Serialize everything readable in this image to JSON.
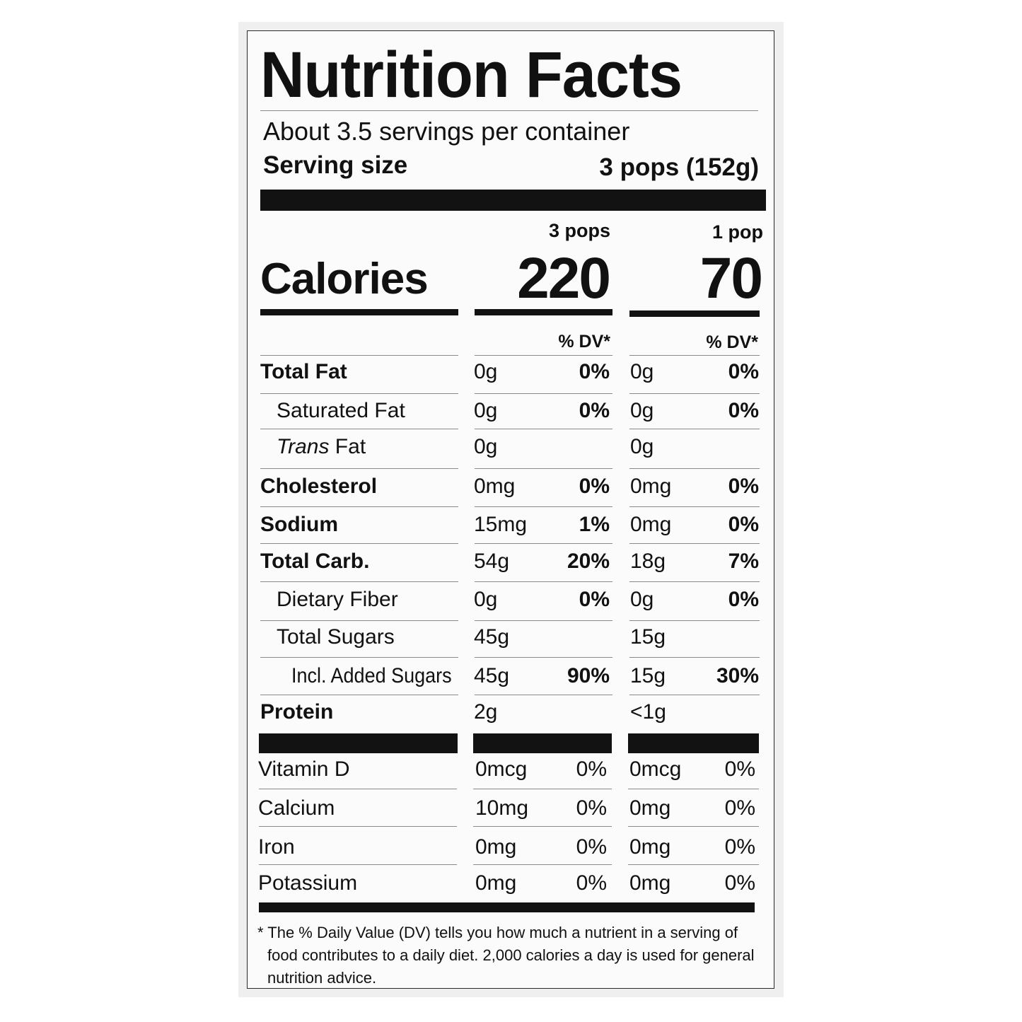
{
  "label": {
    "title": "Nutrition Facts",
    "servings_per_container": "About 3.5 servings per container",
    "serving_size_label": "Serving size",
    "serving_size_value": "3 pops (152g)",
    "columns": [
      {
        "heading": "3 pops",
        "calories": "220",
        "dv_heading": "% DV*"
      },
      {
        "heading": "1 pop",
        "calories": "70",
        "dv_heading": "% DV*"
      }
    ],
    "calories_label": "Calories",
    "nutrients": [
      {
        "name": "Total Fat",
        "bold": true,
        "indent": 0,
        "v1": "0g",
        "p1": "0%",
        "v2": "0g",
        "p2": "0%"
      },
      {
        "name": "Saturated Fat",
        "bold": false,
        "indent": 1,
        "v1": "0g",
        "p1": "0%",
        "v2": "0g",
        "p2": "0%"
      },
      {
        "name": "Trans Fat",
        "bold": false,
        "indent": 1,
        "italic_prefix": "Trans",
        "v1": "0g",
        "p1": "",
        "v2": "0g",
        "p2": ""
      },
      {
        "name": "Cholesterol",
        "bold": true,
        "indent": 0,
        "v1": "0mg",
        "p1": "0%",
        "v2": "0mg",
        "p2": "0%"
      },
      {
        "name": "Sodium",
        "bold": true,
        "indent": 0,
        "v1": "15mg",
        "p1": "1%",
        "v2": "0mg",
        "p2": "0%"
      },
      {
        "name": "Total Carb.",
        "bold": true,
        "indent": 0,
        "v1": "54g",
        "p1": "20%",
        "v2": "18g",
        "p2": "7%"
      },
      {
        "name": "Dietary Fiber",
        "bold": false,
        "indent": 1,
        "v1": "0g",
        "p1": "0%",
        "v2": "0g",
        "p2": "0%"
      },
      {
        "name": "Total Sugars",
        "bold": false,
        "indent": 1,
        "v1": "45g",
        "p1": "",
        "v2": "15g",
        "p2": ""
      },
      {
        "name": "Incl. Added Sugars",
        "bold": false,
        "indent": 2,
        "v1": "45g",
        "p1": "90%",
        "v2": "15g",
        "p2": "30%"
      },
      {
        "name": "Protein",
        "bold": true,
        "indent": 0,
        "v1": "2g",
        "p1": "",
        "v2": "<1g",
        "p2": ""
      }
    ],
    "vitamins": [
      {
        "name": "Vitamin D",
        "v1": "0mcg",
        "p1": "0%",
        "v2": "0mcg",
        "p2": "0%"
      },
      {
        "name": "Calcium",
        "v1": "10mg",
        "p1": "0%",
        "v2": "0mg",
        "p2": "0%"
      },
      {
        "name": "Iron",
        "v1": "0mg",
        "p1": "0%",
        "v2": "0mg",
        "p2": "0%"
      },
      {
        "name": "Potassium",
        "v1": "0mg",
        "p1": "0%",
        "v2": "0mg",
        "p2": "0%"
      }
    ],
    "footnote_line1": "* The % Daily Value (DV) tells you how much a nutrient in a serving of",
    "footnote_line2": "food contributes to a daily diet. 2,000 calories a day is used for general",
    "footnote_line3": "nutrition advice."
  }
}
